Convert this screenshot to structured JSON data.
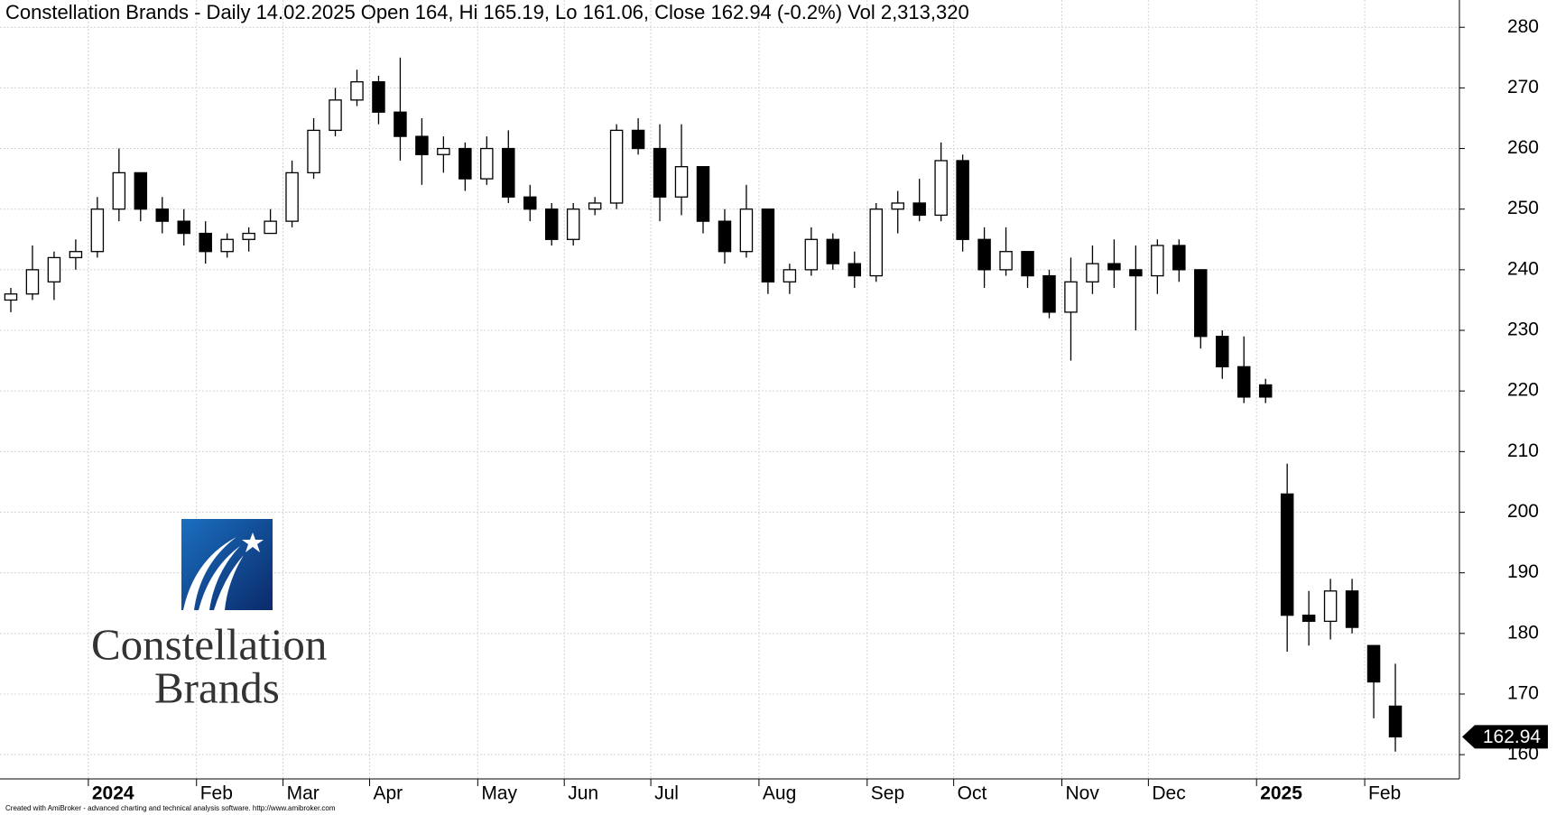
{
  "chart_data": {
    "type": "candlestick",
    "title": "Constellation Brands - Daily 14.02.2025 Open 164, Hi 165.19, Lo 161.06, Close 162.94 (-0.2%) Vol 2,313,320",
    "categories": [
      null,
      null,
      null,
      null,
      "2024",
      null,
      null,
      null,
      null,
      "Feb",
      null,
      null,
      null,
      "Mar",
      null,
      null,
      null,
      "Apr",
      null,
      null,
      null,
      null,
      "May",
      null,
      null,
      null,
      "Jun",
      null,
      null,
      null,
      "Jul",
      null,
      null,
      null,
      null,
      "Aug",
      null,
      null,
      null,
      null,
      "Sep",
      null,
      null,
      null,
      "Oct",
      null,
      null,
      null,
      null,
      "Nov",
      null,
      null,
      null,
      "Dec",
      null,
      null,
      null,
      null,
      "2025",
      null,
      null,
      null,
      null,
      "Feb",
      null
    ],
    "open": [
      235,
      236,
      238,
      242,
      243,
      250,
      256,
      250,
      248,
      246,
      243,
      245,
      246,
      248,
      256,
      263,
      268,
      271,
      266,
      262,
      259,
      260,
      255,
      260,
      252,
      250,
      245,
      250,
      251,
      263,
      260,
      252,
      257,
      248,
      243,
      250,
      238,
      240,
      245,
      241,
      239,
      250,
      251,
      249,
      258,
      245,
      240,
      243,
      239,
      233,
      238,
      241,
      240,
      239,
      244,
      240,
      229,
      224,
      221,
      203,
      183,
      182,
      187,
      178,
      168
    ],
    "high": [
      237,
      244,
      243,
      245,
      252,
      260,
      256,
      252,
      250,
      248,
      246,
      247,
      250,
      258,
      265,
      270,
      273,
      272,
      275,
      265,
      262,
      261,
      262,
      263,
      254,
      251,
      251,
      252,
      264,
      265,
      264,
      264,
      257,
      250,
      254,
      250,
      241,
      247,
      246,
      243,
      251,
      253,
      255,
      261,
      259,
      247,
      247,
      243,
      240,
      242,
      244,
      245,
      244,
      245,
      245,
      240,
      230,
      229,
      222,
      208,
      187,
      189,
      189,
      178,
      175
    ],
    "low": [
      233,
      235,
      235,
      240,
      242,
      248,
      248,
      246,
      244,
      241,
      242,
      243,
      246,
      247,
      255,
      262,
      267,
      264,
      258,
      254,
      256,
      253,
      254,
      251,
      248,
      244,
      244,
      249,
      250,
      259,
      248,
      249,
      246,
      241,
      242,
      236,
      236,
      239,
      240,
      237,
      238,
      246,
      248,
      248,
      243,
      237,
      239,
      237,
      232,
      225,
      236,
      237,
      230,
      236,
      238,
      227,
      222,
      218,
      218,
      177,
      178,
      179,
      180,
      166,
      160.5
    ],
    "close": [
      236,
      240,
      242,
      243,
      250,
      256,
      250,
      248,
      246,
      243,
      245,
      246,
      248,
      256,
      263,
      268,
      271,
      266,
      262,
      259,
      260,
      255,
      260,
      252,
      250,
      245,
      250,
      251,
      263,
      260,
      252,
      257,
      248,
      243,
      250,
      238,
      240,
      245,
      241,
      239,
      250,
      251,
      249,
      258,
      245,
      240,
      243,
      239,
      233,
      238,
      241,
      240,
      239,
      244,
      240,
      229,
      224,
      219,
      219,
      183,
      182,
      187,
      181,
      172,
      162.94
    ],
    "ylim": [
      156,
      284.5
    ],
    "yticks": [
      160,
      170,
      180,
      190,
      200,
      210,
      220,
      230,
      240,
      250,
      260,
      270,
      280
    ],
    "grid": true,
    "last_price": 162.94,
    "footer": "Created with AmiBroker - advanced charting and technical analysis software. http://www.amibroker.com"
  },
  "logo": {
    "lines": [
      "Constellation",
      "Brands"
    ]
  }
}
